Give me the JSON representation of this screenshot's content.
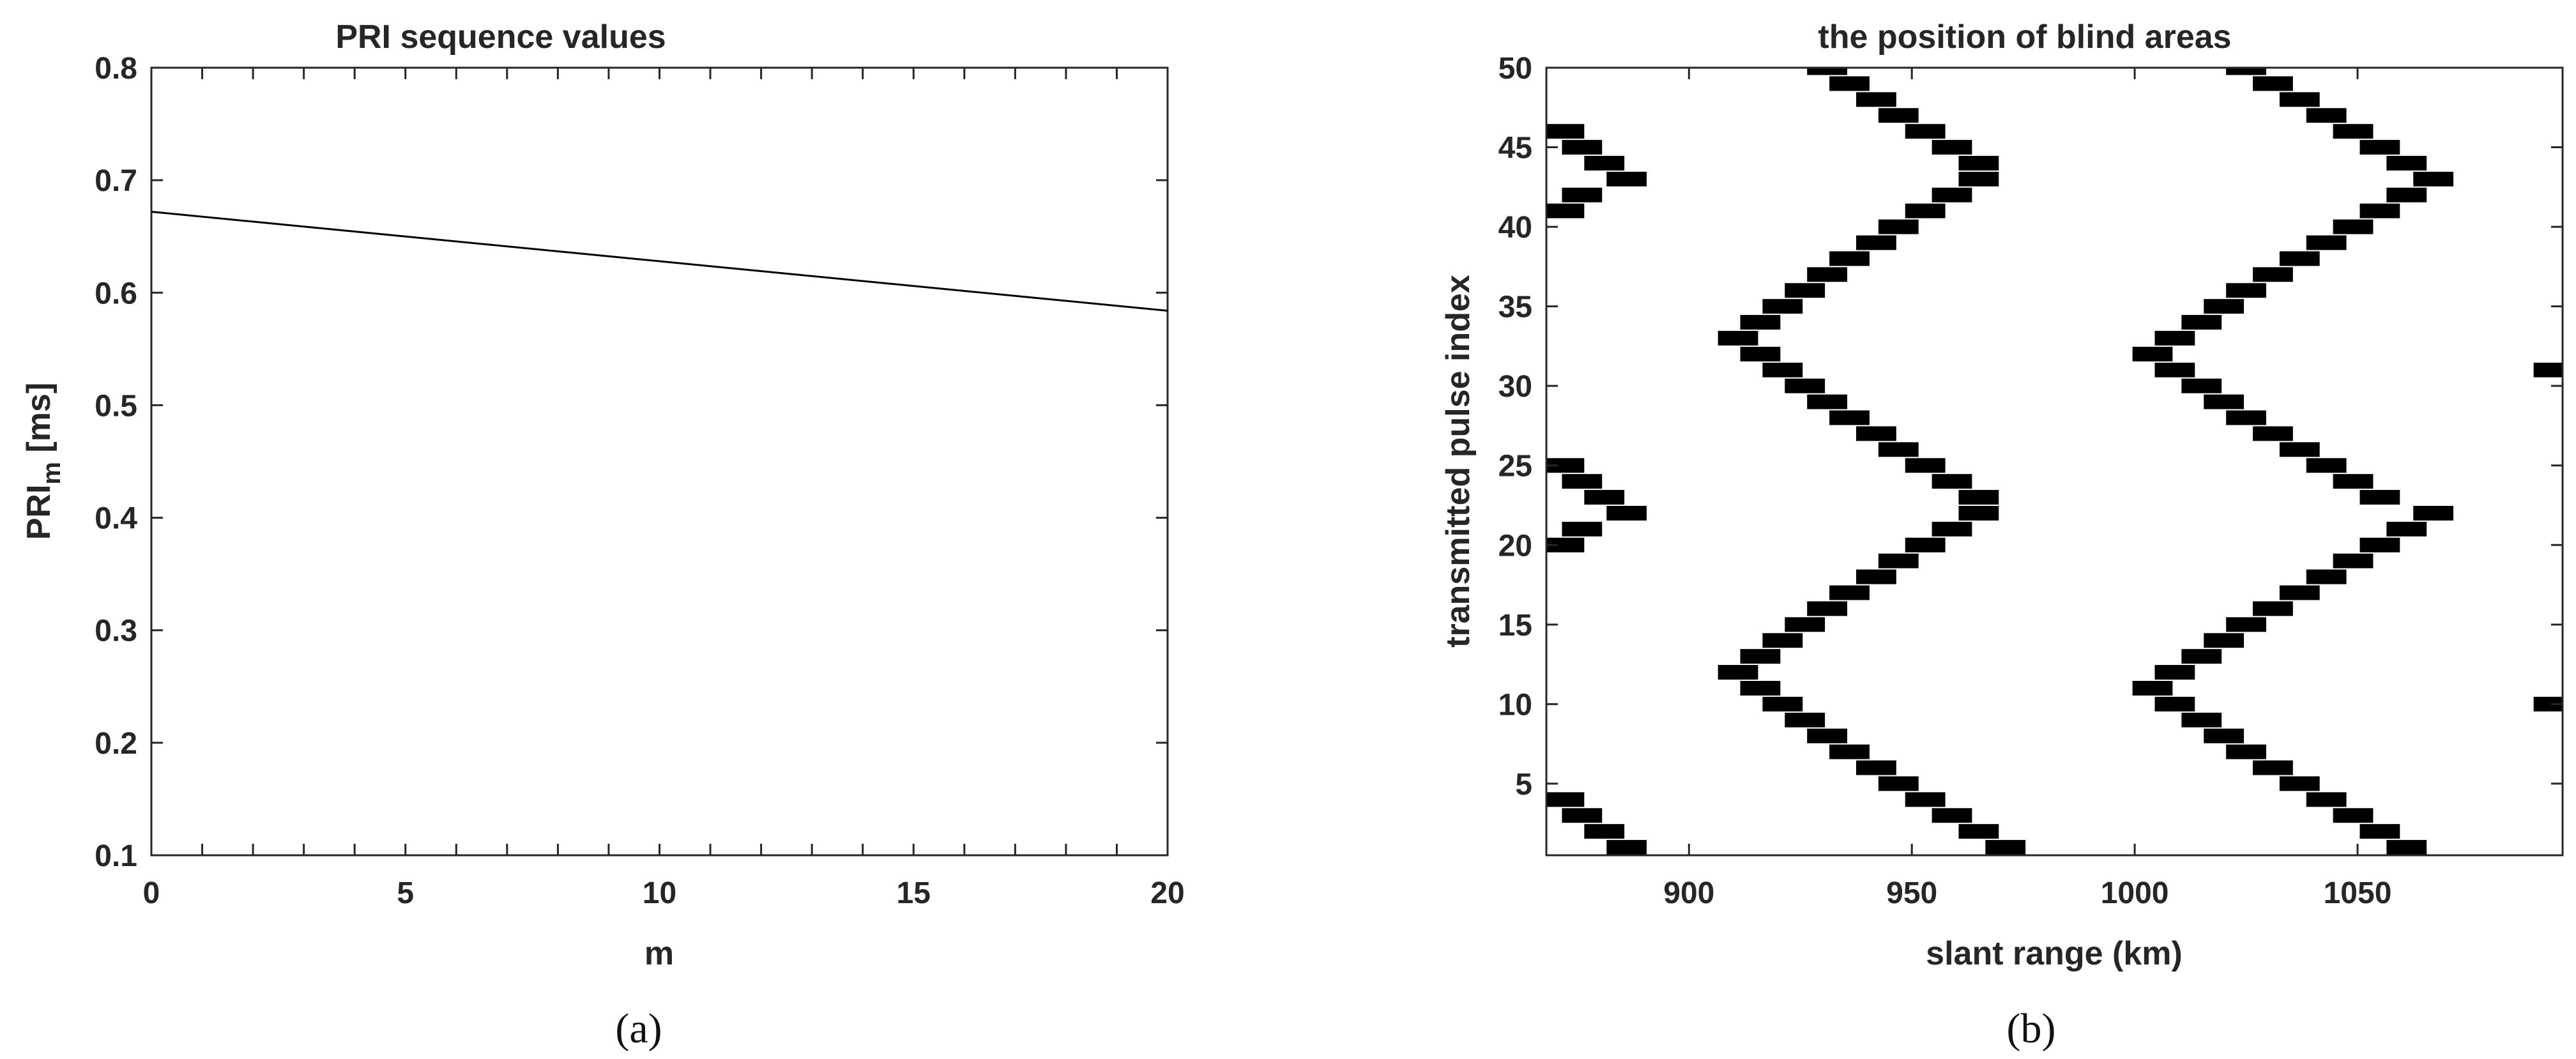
{
  "chart_data": [
    {
      "type": "line",
      "title": "PRI sequence values",
      "xlabel": "m",
      "ylabel_main": "PRI",
      "ylabel_sub": "m",
      "ylabel_unit": " [ms]",
      "xlim": [
        0,
        20
      ],
      "ylim": [
        0.1,
        0.8
      ],
      "xticks": [
        0,
        5,
        10,
        15,
        20
      ],
      "xtick_labels": [
        "0",
        "5",
        "10",
        "15",
        "20"
      ],
      "yticks": [
        0.1,
        0.2,
        0.3,
        0.4,
        0.5,
        0.6,
        0.7,
        0.8
      ],
      "ytick_labels": [
        "0.1",
        "0.2",
        "0.3",
        "0.4",
        "0.5",
        "0.6",
        "0.7",
        "0.8"
      ],
      "grid": false,
      "series": [
        {
          "x": [
            0,
            20
          ],
          "y": [
            0.672,
            0.584
          ],
          "color": "#000000"
        }
      ],
      "caption_letter": "a"
    },
    {
      "type": "scatter",
      "title": "the position of blind areas",
      "xlabel": "slant range (km)",
      "ylabel": "transmitted pulse index",
      "xlim": [
        868,
        1096
      ],
      "ylim": [
        0.5,
        50
      ],
      "xticks": [
        900,
        950,
        1000,
        1050
      ],
      "xtick_labels": [
        "900",
        "950",
        "1000",
        "1050"
      ],
      "yticks": [
        5,
        10,
        15,
        20,
        25,
        30,
        35,
        40,
        45,
        50
      ],
      "ytick_labels": [
        "5",
        "10",
        "15",
        "20",
        "25",
        "30",
        "35",
        "40",
        "45",
        "50"
      ],
      "grid": false,
      "marker_width_km": 9,
      "marker_color": "#000000",
      "blocks": [
        {
          "x": 872,
          "y": 4
        },
        {
          "x": 876,
          "y": 3
        },
        {
          "x": 881,
          "y": 2
        },
        {
          "x": 886,
          "y": 1
        },
        {
          "x": 872,
          "y": 20
        },
        {
          "x": 876,
          "y": 21
        },
        {
          "x": 881,
          "y": 23
        },
        {
          "x": 886,
          "y": 22
        },
        {
          "x": 872,
          "y": 25
        },
        {
          "x": 876,
          "y": 24
        },
        {
          "x": 872,
          "y": 41
        },
        {
          "x": 876,
          "y": 42
        },
        {
          "x": 881,
          "y": 44
        },
        {
          "x": 886,
          "y": 43
        },
        {
          "x": 872,
          "y": 46
        },
        {
          "x": 876,
          "y": 45
        },
        {
          "x": 911,
          "y": 12
        },
        {
          "x": 916,
          "y": 11
        },
        {
          "x": 921,
          "y": 10
        },
        {
          "x": 926,
          "y": 9
        },
        {
          "x": 931,
          "y": 8
        },
        {
          "x": 936,
          "y": 7
        },
        {
          "x": 942,
          "y": 6
        },
        {
          "x": 947,
          "y": 5
        },
        {
          "x": 953,
          "y": 4
        },
        {
          "x": 959,
          "y": 3
        },
        {
          "x": 965,
          "y": 2
        },
        {
          "x": 971,
          "y": 1
        },
        {
          "x": 916,
          "y": 13
        },
        {
          "x": 921,
          "y": 14
        },
        {
          "x": 926,
          "y": 15
        },
        {
          "x": 931,
          "y": 16
        },
        {
          "x": 936,
          "y": 17
        },
        {
          "x": 942,
          "y": 18
        },
        {
          "x": 947,
          "y": 19
        },
        {
          "x": 953,
          "y": 20
        },
        {
          "x": 959,
          "y": 21
        },
        {
          "x": 965,
          "y": 22
        },
        {
          "x": 911,
          "y": 33
        },
        {
          "x": 916,
          "y": 32
        },
        {
          "x": 921,
          "y": 31
        },
        {
          "x": 926,
          "y": 30
        },
        {
          "x": 931,
          "y": 29
        },
        {
          "x": 936,
          "y": 28
        },
        {
          "x": 942,
          "y": 27
        },
        {
          "x": 947,
          "y": 26
        },
        {
          "x": 953,
          "y": 25
        },
        {
          "x": 959,
          "y": 24
        },
        {
          "x": 965,
          "y": 23
        },
        {
          "x": 916,
          "y": 34
        },
        {
          "x": 921,
          "y": 35
        },
        {
          "x": 926,
          "y": 36
        },
        {
          "x": 931,
          "y": 37
        },
        {
          "x": 936,
          "y": 38
        },
        {
          "x": 942,
          "y": 39
        },
        {
          "x": 947,
          "y": 40
        },
        {
          "x": 953,
          "y": 41
        },
        {
          "x": 959,
          "y": 42
        },
        {
          "x": 965,
          "y": 43
        },
        {
          "x": 965,
          "y": 44
        },
        {
          "x": 959,
          "y": 45
        },
        {
          "x": 953,
          "y": 46
        },
        {
          "x": 947,
          "y": 47
        },
        {
          "x": 942,
          "y": 48
        },
        {
          "x": 936,
          "y": 49
        },
        {
          "x": 931,
          "y": 50
        },
        {
          "x": 1004,
          "y": 11
        },
        {
          "x": 1009,
          "y": 10
        },
        {
          "x": 1015,
          "y": 9
        },
        {
          "x": 1020,
          "y": 8
        },
        {
          "x": 1025,
          "y": 7
        },
        {
          "x": 1031,
          "y": 6
        },
        {
          "x": 1037,
          "y": 5
        },
        {
          "x": 1043,
          "y": 4
        },
        {
          "x": 1049,
          "y": 3
        },
        {
          "x": 1055,
          "y": 2
        },
        {
          "x": 1061,
          "y": 1
        },
        {
          "x": 1009,
          "y": 12
        },
        {
          "x": 1015,
          "y": 13
        },
        {
          "x": 1020,
          "y": 14
        },
        {
          "x": 1025,
          "y": 15
        },
        {
          "x": 1031,
          "y": 16
        },
        {
          "x": 1037,
          "y": 17
        },
        {
          "x": 1043,
          "y": 18
        },
        {
          "x": 1049,
          "y": 19
        },
        {
          "x": 1055,
          "y": 20
        },
        {
          "x": 1061,
          "y": 21
        },
        {
          "x": 1067,
          "y": 22
        },
        {
          "x": 1004,
          "y": 32
        },
        {
          "x": 1009,
          "y": 31
        },
        {
          "x": 1015,
          "y": 30
        },
        {
          "x": 1020,
          "y": 29
        },
        {
          "x": 1025,
          "y": 28
        },
        {
          "x": 1031,
          "y": 27
        },
        {
          "x": 1037,
          "y": 26
        },
        {
          "x": 1043,
          "y": 25
        },
        {
          "x": 1049,
          "y": 24
        },
        {
          "x": 1055,
          "y": 23
        },
        {
          "x": 1009,
          "y": 33
        },
        {
          "x": 1015,
          "y": 34
        },
        {
          "x": 1020,
          "y": 35
        },
        {
          "x": 1025,
          "y": 36
        },
        {
          "x": 1031,
          "y": 37
        },
        {
          "x": 1037,
          "y": 38
        },
        {
          "x": 1043,
          "y": 39
        },
        {
          "x": 1049,
          "y": 40
        },
        {
          "x": 1055,
          "y": 41
        },
        {
          "x": 1061,
          "y": 42
        },
        {
          "x": 1067,
          "y": 43
        },
        {
          "x": 1061,
          "y": 44
        },
        {
          "x": 1055,
          "y": 45
        },
        {
          "x": 1049,
          "y": 46
        },
        {
          "x": 1043,
          "y": 47
        },
        {
          "x": 1037,
          "y": 48
        },
        {
          "x": 1031,
          "y": 49
        },
        {
          "x": 1025,
          "y": 50
        },
        {
          "x": 1094,
          "y": 10
        },
        {
          "x": 1094,
          "y": 31
        }
      ],
      "caption_letter": "b"
    }
  ]
}
